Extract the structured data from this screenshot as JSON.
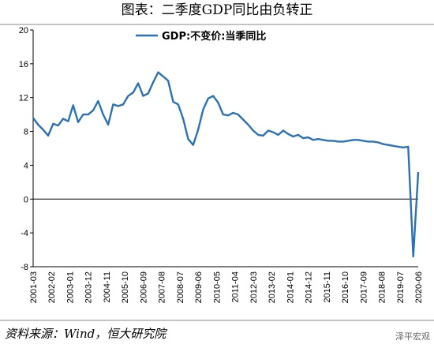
{
  "chart_data": {
    "type": "line",
    "title": "图表：二季度GDP同比由负转正",
    "source": "资料来源：Wind，恒大研究院",
    "watermark": "泽平宏观",
    "x": [
      "2001-03",
      "2001-06",
      "2001-09",
      "2001-12",
      "2002-03",
      "2002-06",
      "2002-09",
      "2002-12",
      "2003-03",
      "2003-06",
      "2003-09",
      "2003-12",
      "2004-03",
      "2004-06",
      "2004-09",
      "2004-12",
      "2005-03",
      "2005-06",
      "2005-09",
      "2005-12",
      "2006-03",
      "2006-06",
      "2006-09",
      "2006-12",
      "2007-03",
      "2007-06",
      "2007-09",
      "2007-12",
      "2008-03",
      "2008-06",
      "2008-09",
      "2008-12",
      "2009-03",
      "2009-06",
      "2009-09",
      "2009-12",
      "2010-03",
      "2010-06",
      "2010-09",
      "2010-12",
      "2011-03",
      "2011-06",
      "2011-09",
      "2011-12",
      "2012-03",
      "2012-06",
      "2012-09",
      "2012-12",
      "2013-03",
      "2013-06",
      "2013-09",
      "2013-12",
      "2014-03",
      "2014-06",
      "2014-09",
      "2014-12",
      "2015-03",
      "2015-06",
      "2015-09",
      "2015-12",
      "2016-03",
      "2016-06",
      "2016-09",
      "2016-12",
      "2017-03",
      "2017-06",
      "2017-09",
      "2017-12",
      "2018-03",
      "2018-06",
      "2018-09",
      "2018-12",
      "2019-03",
      "2019-06",
      "2019-09",
      "2019-12",
      "2020-03",
      "2020-06"
    ],
    "series": [
      {
        "name": "GDP:不变价:当季同比",
        "color": "#2a72b5",
        "values": [
          9.6,
          8.8,
          8.2,
          7.5,
          8.9,
          8.7,
          9.5,
          9.2,
          11.1,
          9.1,
          10.0,
          10.0,
          10.5,
          11.6,
          10.0,
          8.8,
          11.2,
          11.0,
          11.2,
          12.2,
          12.6,
          13.7,
          12.2,
          12.5,
          13.8,
          15.0,
          14.5,
          14.0,
          11.5,
          11.2,
          9.5,
          7.1,
          6.4,
          8.2,
          10.6,
          11.9,
          12.2,
          11.4,
          10.0,
          9.9,
          10.2,
          10.0,
          9.4,
          8.8,
          8.1,
          7.6,
          7.5,
          8.1,
          7.9,
          7.6,
          8.1,
          7.7,
          7.4,
          7.6,
          7.2,
          7.3,
          7.0,
          7.1,
          7.0,
          6.9,
          6.9,
          6.8,
          6.8,
          6.9,
          7.0,
          7.0,
          6.9,
          6.8,
          6.8,
          6.7,
          6.5,
          6.4,
          6.3,
          6.2,
          6.1,
          6.2,
          -6.8,
          3.2
        ]
      }
    ],
    "xticks": [
      "2001-03",
      "2002-02",
      "2003-01",
      "2003-12",
      "2004-11",
      "2005-10",
      "2006-09",
      "2007-08",
      "2008-07",
      "2009-06",
      "2010-05",
      "2011-04",
      "2012-03",
      "2013-02",
      "2014-01",
      "2014-12",
      "2015-11",
      "2016-10",
      "2017-09",
      "2018-08",
      "2019-07",
      "2020-06"
    ],
    "ylim": [
      -8,
      20
    ],
    "yticks": [
      -8,
      -4,
      0,
      4,
      8,
      12,
      16,
      20
    ],
    "legend": "top-left"
  }
}
